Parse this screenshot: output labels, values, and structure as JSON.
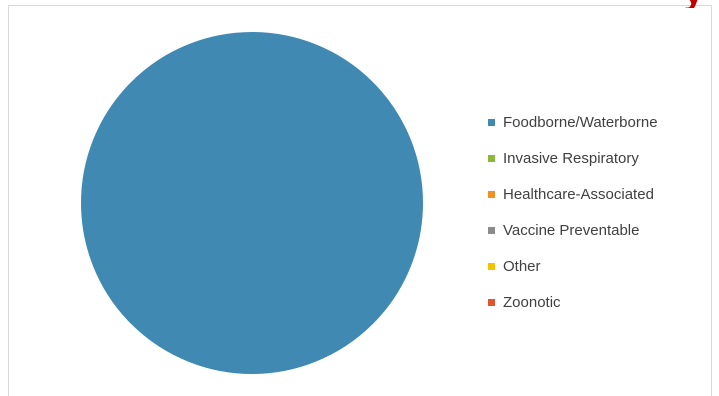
{
  "header": {
    "title_fragment": "y"
  },
  "chart_data": {
    "type": "pie",
    "title": "",
    "categories": [
      "Foodborne/Waterborne",
      "Invasive Respiratory",
      "Healthcare-Associated",
      "Vaccine Preventable",
      "Other",
      "Zoonotic"
    ],
    "values": [
      99.6,
      0,
      0,
      0,
      0,
      0
    ],
    "colors": [
      "#3f89b3",
      "#8cb83a",
      "#f0901e",
      "#8c8c8c",
      "#f5c400",
      "#e2542b"
    ],
    "legend_position": "right"
  }
}
